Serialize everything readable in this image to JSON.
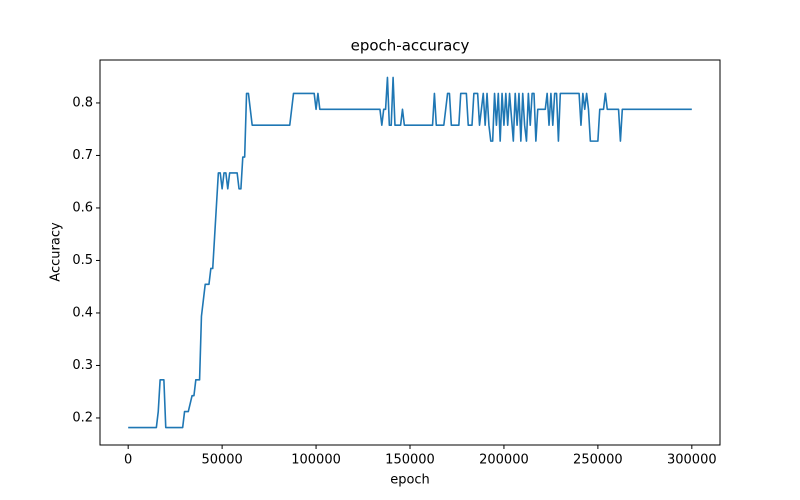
{
  "chart_data": {
    "type": "line",
    "title": "epoch-accuracy",
    "x_label": "epoch",
    "y_label": "Accuracy",
    "xlim": [
      -15000,
      315000
    ],
    "xticks": [
      0,
      50000,
      100000,
      150000,
      200000,
      250000,
      300000
    ],
    "ylim": [
      0.1485,
      0.8818
    ],
    "yticks": [
      0.2,
      0.3,
      0.4,
      0.5,
      0.6,
      0.7,
      0.8
    ],
    "grid": false,
    "x": [
      0,
      15000,
      16000,
      17000,
      19000,
      20000,
      29000,
      30000,
      32000,
      34000,
      35000,
      36000,
      38000,
      39000,
      40000,
      41000,
      43000,
      44000,
      45000,
      46000,
      47000,
      48000,
      49000,
      50000,
      51000,
      52000,
      53000,
      54000,
      56000,
      58000,
      59000,
      60000,
      61000,
      62000,
      63000,
      64000,
      66000,
      86000,
      88000,
      99000,
      100000,
      101000,
      102000,
      134000,
      135000,
      136000,
      137000,
      138000,
      139000,
      140000,
      141000,
      142000,
      145000,
      146000,
      147000,
      162000,
      163000,
      164000,
      168000,
      170000,
      171000,
      172000,
      176000,
      177000,
      180000,
      181000,
      183000,
      184000,
      186000,
      187000,
      188000,
      189000,
      190000,
      191000,
      192000,
      193000,
      194000,
      195000,
      196000,
      197000,
      198000,
      199000,
      200000,
      201000,
      202000,
      203000,
      205000,
      206000,
      207000,
      208000,
      209000,
      210000,
      211000,
      212000,
      213000,
      214000,
      215000,
      216000,
      217000,
      218000,
      222000,
      223000,
      224000,
      225000,
      226000,
      227000,
      228000,
      229000,
      230000,
      240000,
      241000,
      242000,
      243000,
      244000,
      245000,
      246000,
      250000,
      251000,
      253000,
      254000,
      255000,
      261000,
      262000,
      263000,
      300000
    ],
    "series": [
      {
        "name": "accuracy",
        "color": "#1f77b4",
        "values": [
          0.1818,
          0.1818,
          0.2121,
          0.2727,
          0.2727,
          0.1818,
          0.1818,
          0.2121,
          0.2121,
          0.2424,
          0.2424,
          0.2727,
          0.2727,
          0.3939,
          0.4242,
          0.4545,
          0.4545,
          0.4848,
          0.4848,
          0.5455,
          0.6061,
          0.6667,
          0.6667,
          0.6364,
          0.6667,
          0.6667,
          0.6364,
          0.6667,
          0.6667,
          0.6667,
          0.6364,
          0.6364,
          0.697,
          0.697,
          0.8182,
          0.8182,
          0.7576,
          0.7576,
          0.8182,
          0.8182,
          0.7879,
          0.8182,
          0.7879,
          0.7879,
          0.7576,
          0.7879,
          0.7879,
          0.8485,
          0.7576,
          0.7576,
          0.8485,
          0.7576,
          0.7576,
          0.7879,
          0.7576,
          0.7576,
          0.8182,
          0.7576,
          0.7576,
          0.8182,
          0.8182,
          0.7576,
          0.7576,
          0.8182,
          0.8182,
          0.7576,
          0.7576,
          0.8182,
          0.8182,
          0.7576,
          0.7879,
          0.8182,
          0.7576,
          0.8182,
          0.7576,
          0.7273,
          0.7273,
          0.8182,
          0.7576,
          0.8182,
          0.7273,
          0.8182,
          0.7576,
          0.8182,
          0.7576,
          0.8182,
          0.7273,
          0.8182,
          0.7576,
          0.8182,
          0.7273,
          0.8182,
          0.7576,
          0.7273,
          0.8182,
          0.7576,
          0.8182,
          0.8182,
          0.7273,
          0.7879,
          0.7879,
          0.8182,
          0.7576,
          0.8182,
          0.7576,
          0.8182,
          0.8182,
          0.7273,
          0.8182,
          0.8182,
          0.7576,
          0.8182,
          0.7879,
          0.8182,
          0.7879,
          0.7273,
          0.7273,
          0.7879,
          0.7879,
          0.8182,
          0.7879,
          0.7879,
          0.7273,
          0.7879,
          0.7879
        ]
      }
    ]
  }
}
